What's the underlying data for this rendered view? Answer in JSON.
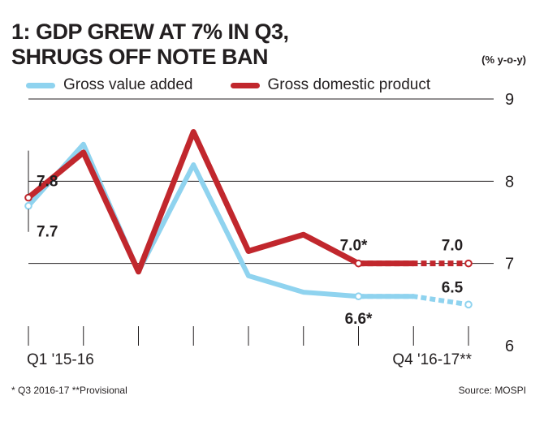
{
  "title": {
    "line1": "1: GDP GREW AT 7% IN Q3,",
    "line2": "SHRUGS OFF NOTE BAN"
  },
  "unit_label": "(% y-o-y)",
  "footnote": "* Q3 2016-17 **Provisional",
  "source": "Source: MOSPI",
  "chart_data": {
    "type": "line",
    "title": "1: GDP GREW AT 7% IN Q3, SHRUGS OFF NOTE BAN",
    "ylabel": "(% y-o-y)",
    "xlabel": "",
    "ylim": [
      6,
      9
    ],
    "yticks": [
      6,
      7,
      8,
      9
    ],
    "y_axis_position": "right",
    "grid": "horizontal",
    "x_tick_labels": [
      "Q1 '15-16",
      "Q4 '16-17**"
    ],
    "categories": [
      "Q1 '15-16",
      "",
      "",
      "",
      "",
      "",
      "",
      "",
      "Q4 '16-17**"
    ],
    "legend_position": "top",
    "series": [
      {
        "name": "Gross value added",
        "color": "#8fd3ef",
        "values": [
          7.7,
          8.45,
          6.9,
          8.2,
          6.85,
          6.65,
          6.6,
          6.6,
          6.5
        ],
        "dashed_from_index": 7
      },
      {
        "name": "Gross domestic product",
        "color": "#c1272d",
        "values": [
          7.8,
          8.35,
          6.9,
          8.6,
          7.15,
          7.35,
          7.0,
          7.0,
          7.0
        ],
        "dashed_from_index": 7
      }
    ],
    "annotations": [
      {
        "text": "7.8",
        "series": 1,
        "index": 0,
        "pos": "above-right"
      },
      {
        "text": "7.7",
        "series": 0,
        "index": 0,
        "pos": "below-right"
      },
      {
        "text": "7.0*",
        "series": 1,
        "index": 6,
        "pos": "above"
      },
      {
        "text": "6.6*",
        "series": 0,
        "index": 6,
        "pos": "below"
      },
      {
        "text": "7.0",
        "series": 1,
        "index": 8,
        "pos": "above"
      },
      {
        "text": "6.5",
        "series": 0,
        "index": 8,
        "pos": "above"
      }
    ]
  }
}
